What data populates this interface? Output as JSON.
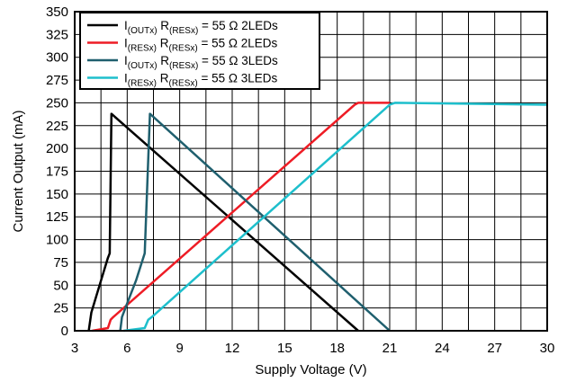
{
  "chart_data": {
    "type": "line",
    "xlabel": "Supply Voltage (V)",
    "ylabel": "Current Output (mA)",
    "xlim": [
      3,
      30
    ],
    "ylim": [
      0,
      350
    ],
    "x_ticks": [
      3,
      6,
      9,
      12,
      15,
      18,
      21,
      24,
      27,
      30
    ],
    "y_ticks": [
      0,
      25,
      50,
      75,
      100,
      125,
      150,
      175,
      200,
      225,
      250,
      275,
      300,
      325,
      350
    ],
    "x_minor_step": 1.5,
    "grid": true,
    "legend_position": "top-left",
    "series": [
      {
        "name": "I(OUTx) R(RESx) = 55 Ω 2LEDs",
        "legend": {
          "main": "I",
          "sub1": "(OUTx)",
          "mid": " R",
          "sub2": "(RESx)",
          "tail": " = 55 Ω 2LEDs"
        },
        "color": "#000000",
        "x": [
          3.8,
          3.95,
          4.5,
          4.9,
          5.0,
          5.1,
          19.2
        ],
        "y": [
          0,
          20,
          55,
          80,
          85,
          238,
          0
        ]
      },
      {
        "name": "I(RESx) R(RESx) = 55 Ω 2LEDs",
        "legend": {
          "main": "I",
          "sub1": "(RESx)",
          "mid": " R",
          "sub2": "(RESx)",
          "tail": " = 55 Ω 2LEDs"
        },
        "color": "#ee1c25",
        "x": [
          4.0,
          4.9,
          5.05,
          5.2,
          19.0,
          19.2,
          21.0
        ],
        "y": [
          0,
          3,
          12,
          15,
          248,
          250,
          250
        ]
      },
      {
        "name": "I(OUTx) R(RESx) = 55 Ω 3LEDs",
        "legend": {
          "main": "I",
          "sub1": "(OUTx)",
          "mid": " R",
          "sub2": "(RESx)",
          "tail": " = 55 Ω 3LEDs"
        },
        "color": "#1f5f6e",
        "x": [
          5.6,
          5.7,
          6.0,
          6.5,
          7.0,
          7.3,
          21.0
        ],
        "y": [
          0,
          15,
          30,
          55,
          85,
          238,
          0
        ]
      },
      {
        "name": "I(RESx) R(RESx) = 55 Ω 3LEDs",
        "legend": {
          "main": "I",
          "sub1": "(RESx)",
          "mid": " R",
          "sub2": "(RESx)",
          "tail": " = 55 Ω 3LEDs"
        },
        "color": "#1ebfcc",
        "x": [
          5.8,
          7.0,
          7.2,
          7.4,
          21.0,
          21.3,
          30.0
        ],
        "y": [
          0,
          3,
          12,
          15,
          248,
          250,
          248
        ]
      }
    ]
  }
}
